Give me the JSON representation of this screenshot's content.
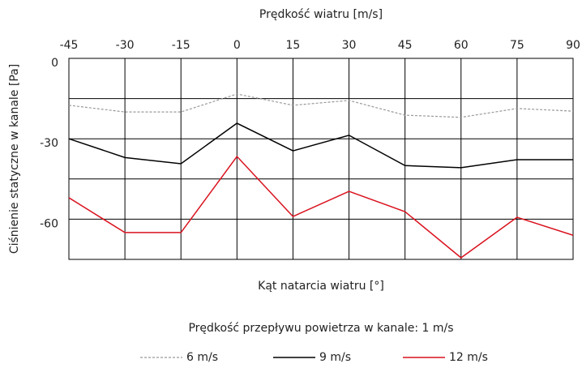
{
  "chart_data": {
    "type": "line",
    "top_axis_label": "Prędkość wiatru [m/s]",
    "xlabel": "Kąt natarcia wiatru [°]",
    "ylabel": "Ciśnienie statyczne w kanale [Pa]",
    "subtitle": "Prędkość przepływu powietrza w kanale: 1 m/s",
    "x": [
      -45,
      -30,
      -15,
      0,
      15,
      30,
      45,
      60,
      75,
      90
    ],
    "xlim": [
      -45,
      90
    ],
    "xticks": [
      -45,
      -30,
      -15,
      0,
      15,
      30,
      45,
      60,
      75,
      90
    ],
    "ylim": [
      -75,
      0
    ],
    "yticks": [
      0,
      -30,
      -60
    ],
    "grid_yticks": [
      -15,
      -30,
      -45,
      -60
    ],
    "grid": true,
    "series": [
      {
        "name": "6 m/s",
        "color": "#999999",
        "dashed": true,
        "values": [
          -17.5,
          -20,
          -20,
          -13.3,
          -17.5,
          -15.7,
          -21.2,
          -22,
          -18.7,
          -19.7
        ]
      },
      {
        "name": "9 m/s",
        "color": "#000000",
        "dashed": false,
        "values": [
          -30,
          -37,
          -39.3,
          -24.2,
          -34.5,
          -28.7,
          -40,
          -40.8,
          -37.8,
          -37.8
        ]
      },
      {
        "name": "12 m/s",
        "color": "#d9131f",
        "dashed": false,
        "values": [
          -52,
          -65,
          -65,
          -36.6,
          -59,
          -49.6,
          -57.2,
          -74.4,
          -59.3,
          -66
        ]
      }
    ]
  }
}
